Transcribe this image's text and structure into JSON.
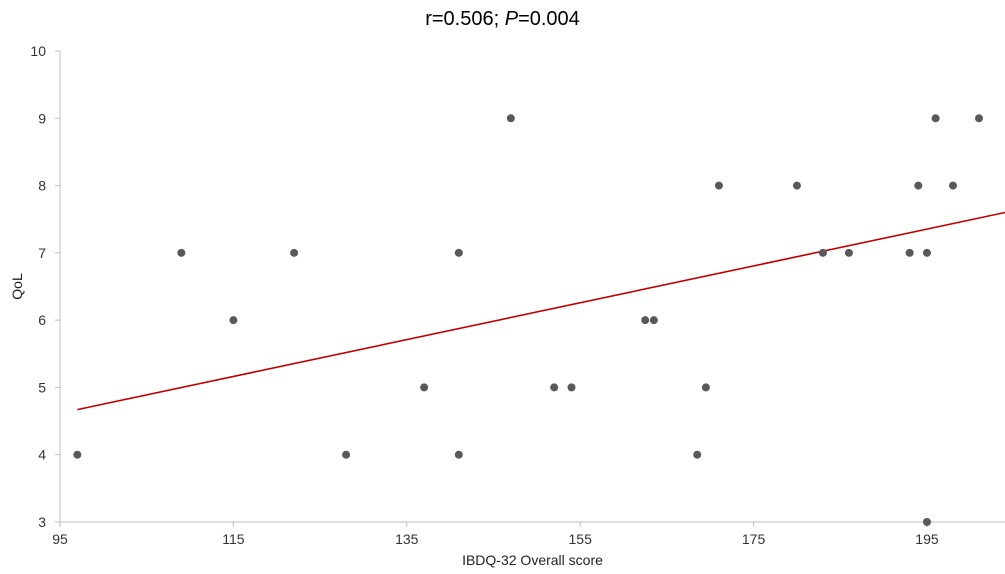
{
  "chart_data": {
    "type": "scatter",
    "title_parts": [
      "r=0.506; ",
      "P",
      "=0.004"
    ],
    "xlabel": "IBDQ-32 Overall score",
    "ylabel": "QoL",
    "xlim": [
      95,
      204
    ],
    "ylim": [
      3,
      10
    ],
    "xticks": [
      "95",
      "115",
      "135",
      "155",
      "175",
      "195"
    ],
    "yticks": [
      "3",
      "4",
      "5",
      "6",
      "7",
      "8",
      "9",
      "10"
    ],
    "points": [
      {
        "x": 97,
        "y": 4
      },
      {
        "x": 109,
        "y": 7
      },
      {
        "x": 115,
        "y": 6
      },
      {
        "x": 122,
        "y": 7
      },
      {
        "x": 128,
        "y": 4
      },
      {
        "x": 137,
        "y": 5
      },
      {
        "x": 141,
        "y": 7
      },
      {
        "x": 141,
        "y": 4
      },
      {
        "x": 147,
        "y": 9
      },
      {
        "x": 152,
        "y": 5
      },
      {
        "x": 154,
        "y": 5
      },
      {
        "x": 162.5,
        "y": 6
      },
      {
        "x": 163.5,
        "y": 6
      },
      {
        "x": 168.5,
        "y": 4
      },
      {
        "x": 169.5,
        "y": 5
      },
      {
        "x": 171,
        "y": 8
      },
      {
        "x": 180,
        "y": 8
      },
      {
        "x": 183,
        "y": 7
      },
      {
        "x": 186,
        "y": 7
      },
      {
        "x": 193,
        "y": 7
      },
      {
        "x": 194,
        "y": 8
      },
      {
        "x": 195,
        "y": 7
      },
      {
        "x": 195,
        "y": 3
      },
      {
        "x": 196,
        "y": 9
      },
      {
        "x": 198,
        "y": 8
      },
      {
        "x": 201,
        "y": 9
      }
    ],
    "trendline": {
      "x": [
        97,
        204
      ],
      "y": [
        4.67,
        7.6
      ],
      "color": "#c00000"
    },
    "point_color": "#595959",
    "axis_color": "#bfbfbf",
    "grid": false
  }
}
